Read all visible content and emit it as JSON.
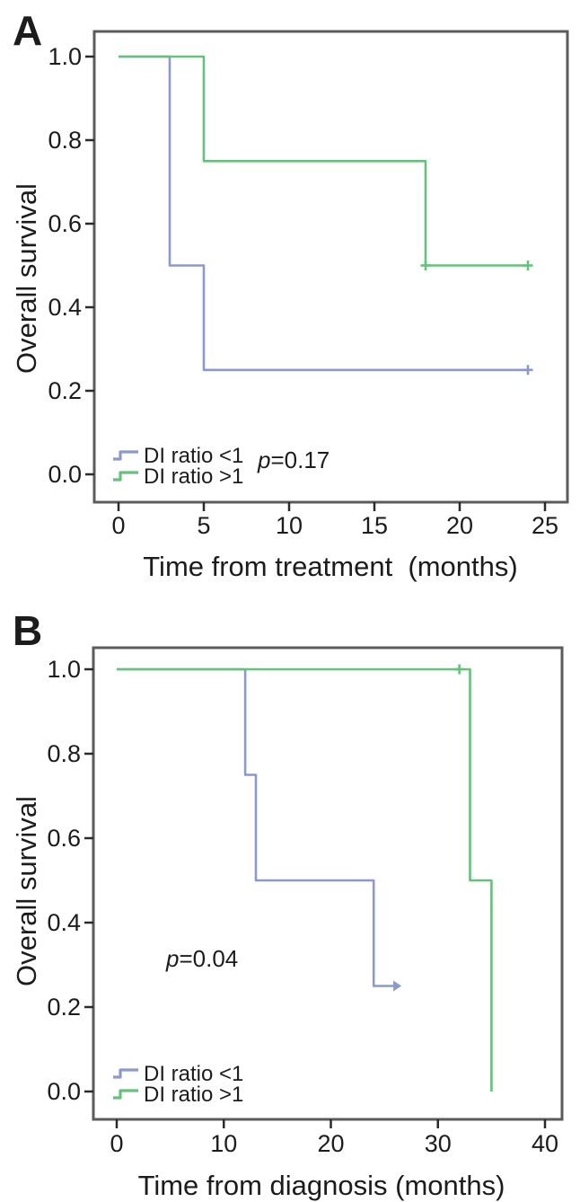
{
  "figure": {
    "background": "#ffffff",
    "frame_color": "#5b5b5b",
    "tick_color": "#2a2a2a",
    "text_color": "#1c1c1c"
  },
  "chart_data": [
    {
      "type": "line",
      "subtype": "kaplan_meier_step",
      "panel_label": "A",
      "xlabel": "Time from treatment  (months)",
      "ylabel": "Overall survival",
      "p_label": "p",
      "p_text": "=0.17",
      "xlim": [
        0,
        25
      ],
      "ylim": [
        0.0,
        1.0
      ],
      "xticks": [
        0,
        5,
        10,
        15,
        20,
        25
      ],
      "ytick_labels": [
        "0.0",
        "0.2",
        "0.4",
        "0.6",
        "0.8",
        "1.0"
      ],
      "grid": false,
      "legend_position": "lower-left-inside",
      "series": [
        {
          "name": "DI ratio <1",
          "color": "#8b99cc",
          "steps": [
            [
              0,
              1.0
            ],
            [
              3,
              1.0
            ],
            [
              3,
              0.5
            ],
            [
              5,
              0.5
            ],
            [
              5,
              0.25
            ],
            [
              24,
              0.25
            ]
          ],
          "censors": [
            {
              "x": 24,
              "y": 0.25,
              "mark": "plus"
            }
          ]
        },
        {
          "name": "DI ratio >1",
          "color": "#66c17c",
          "steps": [
            [
              0,
              1.0
            ],
            [
              5,
              1.0
            ],
            [
              5,
              0.75
            ],
            [
              18,
              0.75
            ],
            [
              18,
              0.5
            ],
            [
              24,
              0.5
            ]
          ],
          "censors": [
            {
              "x": 18,
              "y": 0.5,
              "mark": "plus"
            },
            {
              "x": 24,
              "y": 0.5,
              "mark": "plus"
            }
          ]
        }
      ]
    },
    {
      "type": "line",
      "subtype": "kaplan_meier_step",
      "panel_label": "B",
      "xlabel": "Time from diagnosis (months)",
      "ylabel": "Overall survival",
      "p_label": "p",
      "p_text": "=0.04",
      "xlim": [
        0,
        40
      ],
      "ylim": [
        0.0,
        1.0
      ],
      "xticks": [
        0,
        10,
        20,
        30,
        40
      ],
      "ytick_labels": [
        "0.0",
        "0.2",
        "0.4",
        "0.6",
        "0.8",
        "1.0"
      ],
      "grid": false,
      "legend_position": "lower-left-inside",
      "series": [
        {
          "name": "DI ratio <1",
          "color": "#8b99cc",
          "steps": [
            [
              0,
              1.0
            ],
            [
              12,
              1.0
            ],
            [
              12,
              0.75
            ],
            [
              13,
              0.75
            ],
            [
              13,
              0.5
            ],
            [
              24,
              0.5
            ],
            [
              24,
              0.25
            ],
            [
              26,
              0.25
            ]
          ],
          "censors": [
            {
              "x": 26,
              "y": 0.25,
              "mark": "arrow"
            }
          ]
        },
        {
          "name": "DI ratio >1",
          "color": "#66c17c",
          "steps": [
            [
              0,
              1.0
            ],
            [
              33,
              1.0
            ],
            [
              33,
              0.5
            ],
            [
              35,
              0.5
            ],
            [
              35,
              0.0
            ]
          ],
          "censors": [
            {
              "x": 32,
              "y": 1.0,
              "mark": "plus"
            }
          ]
        }
      ]
    }
  ]
}
